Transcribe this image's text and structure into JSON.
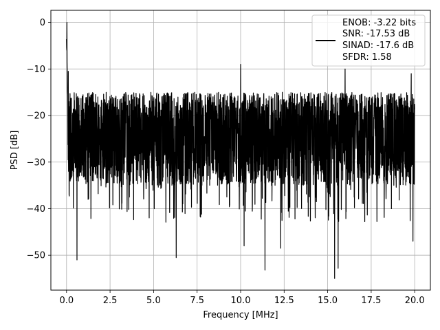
{
  "chart_data": {
    "type": "line",
    "xlabel": "Frequency [MHz]",
    "ylabel": "PSD [dB]",
    "xlim": [
      -0.9,
      20.9
    ],
    "ylim": [
      -57.5,
      2.6
    ],
    "xticks": [
      0.0,
      2.5,
      5.0,
      7.5,
      10.0,
      12.5,
      15.0,
      17.5,
      20.0
    ],
    "xtick_labels": [
      "0.0",
      "2.5",
      "5.0",
      "7.5",
      "10.0",
      "12.5",
      "15.0",
      "17.5",
      "20.0"
    ],
    "yticks": [
      0,
      -10,
      -20,
      -30,
      -40,
      -50
    ],
    "ytick_labels": [
      "0",
      "−10",
      "−20",
      "−30",
      "−40",
      "−50"
    ],
    "grid": true,
    "legend_position": "top-right",
    "series": [
      {
        "legend_lines": [
          "ENOB: -3.22 bits",
          "SNR: -17.53 dB",
          "SINAD: -17.6 dB",
          "SFDR: 1.58"
        ],
        "color": "#000000",
        "x_range": [
          0.0,
          20.0
        ],
        "noise_floor_mean": -24,
        "noise_floor_upper": -15,
        "noise_floor_lower": -35,
        "peaks": [
          {
            "x": 0.02,
            "y": 0.0
          },
          {
            "x": 0.1,
            "y": -10.5
          },
          {
            "x": 10.0,
            "y": -9.0
          },
          {
            "x": 11.4,
            "y": -10.0
          },
          {
            "x": 16.0,
            "y": -10.0
          },
          {
            "x": 19.8,
            "y": -11.0
          }
        ],
        "troughs": [
          {
            "x": 0.6,
            "y": -51.0
          },
          {
            "x": 6.3,
            "y": -50.5
          },
          {
            "x": 11.4,
            "y": -53.2
          },
          {
            "x": 15.4,
            "y": -55.0
          },
          {
            "x": 15.6,
            "y": -52.8
          },
          {
            "x": 12.3,
            "y": -48.5
          },
          {
            "x": 10.2,
            "y": -48.0
          },
          {
            "x": 19.9,
            "y": -47.0
          }
        ]
      }
    ]
  }
}
